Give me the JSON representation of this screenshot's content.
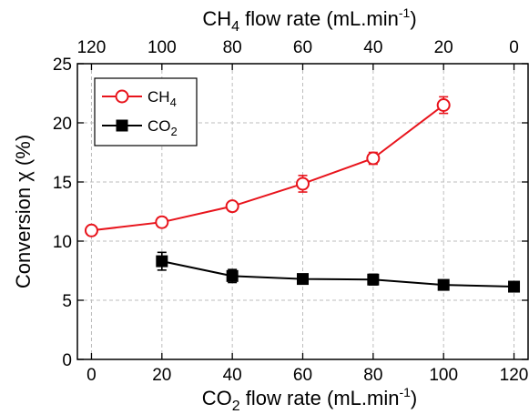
{
  "chart_data": {
    "type": "line",
    "x": [
      0,
      20,
      40,
      60,
      80,
      100,
      120
    ],
    "xlabel": {
      "pre": "CO",
      "sub": "2",
      "post": " flow rate (mL.min",
      "sup": "-1",
      "end": ")"
    },
    "x2label": {
      "pre": "CH",
      "sub": "4",
      "post": " flow rate (mL.min",
      "sup": "-1",
      "end": ")"
    },
    "ylabel": "Conversion χ (%)",
    "xlim": [
      -4,
      124
    ],
    "ylim": [
      0,
      25
    ],
    "xticks": [
      "0",
      "20",
      "40",
      "60",
      "80",
      "100",
      "120"
    ],
    "x2ticks": [
      "120",
      "100",
      "80",
      "60",
      "40",
      "20",
      "0"
    ],
    "yticks": [
      "0",
      "5",
      "10",
      "15",
      "20",
      "25"
    ],
    "grid": true,
    "legend_position": "top-left",
    "series": [
      {
        "name": {
          "pre": "CH",
          "sub": "4"
        },
        "color": "#e8141c",
        "marker": "open-circle",
        "points": [
          {
            "x": 0,
            "y": 10.9,
            "err": 0.25
          },
          {
            "x": 20,
            "y": 11.6,
            "err": 0.4
          },
          {
            "x": 40,
            "y": 12.95,
            "err": 0.3
          },
          {
            "x": 60,
            "y": 14.85,
            "err": 0.7
          },
          {
            "x": 80,
            "y": 17.0,
            "err": 0.5
          },
          {
            "x": 100,
            "y": 21.5,
            "err": 0.7
          }
        ]
      },
      {
        "name": {
          "pre": "CO",
          "sub": "2"
        },
        "color": "#000000",
        "marker": "filled-square",
        "points": [
          {
            "x": 20,
            "y": 8.3,
            "err": 0.75
          },
          {
            "x": 40,
            "y": 7.05,
            "err": 0.55
          },
          {
            "x": 60,
            "y": 6.8,
            "err": 0.4
          },
          {
            "x": 80,
            "y": 6.75,
            "err": 0.45
          },
          {
            "x": 100,
            "y": 6.3,
            "err": 0.3
          },
          {
            "x": 120,
            "y": 6.15,
            "err": 0.25
          }
        ]
      }
    ]
  }
}
